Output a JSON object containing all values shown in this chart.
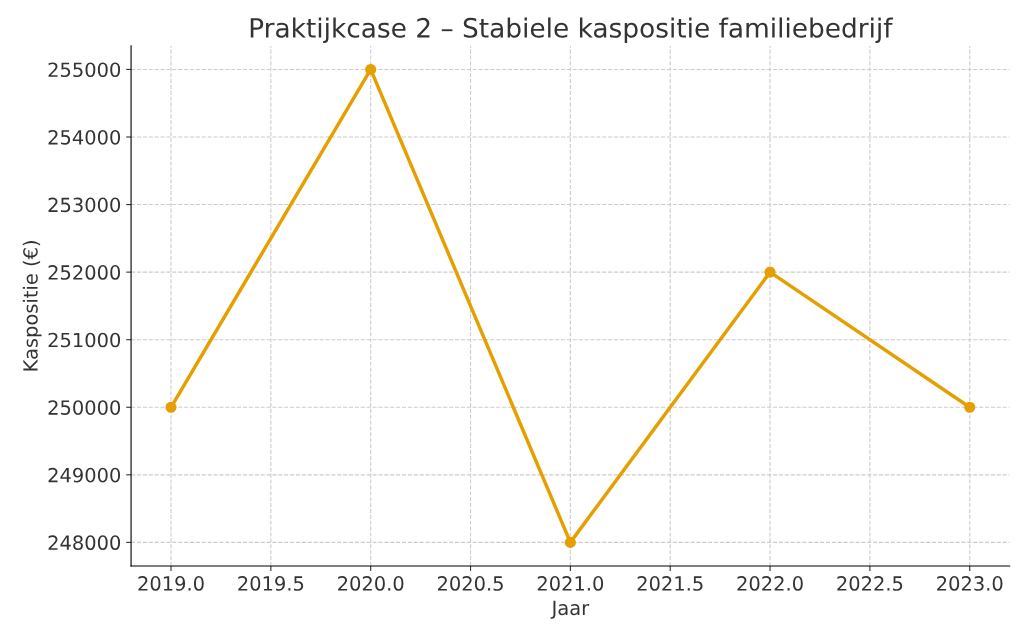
{
  "chart_data": {
    "type": "line",
    "title": "Praktijkcase 2 – Stabiele kaspositie familiebedrijf",
    "xlabel": "Jaar",
    "ylabel": "Kaspositie (€)",
    "x": [
      2019,
      2020,
      2021,
      2022,
      2023
    ],
    "series": [
      {
        "color": "#e69f00",
        "values": [
          250000,
          255000,
          248000,
          252000,
          250000
        ]
      }
    ],
    "xlim": [
      2018.8,
      2023.2
    ],
    "ylim": [
      247650,
      255350
    ],
    "xticks": [
      {
        "value": 2019,
        "label": "2019.0"
      },
      {
        "value": 2019.5,
        "label": "2019.5"
      },
      {
        "value": 2020,
        "label": "2020.0"
      },
      {
        "value": 2020.5,
        "label": "2020.5"
      },
      {
        "value": 2021,
        "label": "2021.0"
      },
      {
        "value": 2021.5,
        "label": "2021.5"
      },
      {
        "value": 2022,
        "label": "2022.0"
      },
      {
        "value": 2022.5,
        "label": "2022.5"
      },
      {
        "value": 2023,
        "label": "2023.0"
      }
    ],
    "yticks": [
      248000,
      249000,
      250000,
      251000,
      252000,
      253000,
      254000,
      255000
    ],
    "grid": true,
    "marker": "circle",
    "line_style": "solid"
  }
}
